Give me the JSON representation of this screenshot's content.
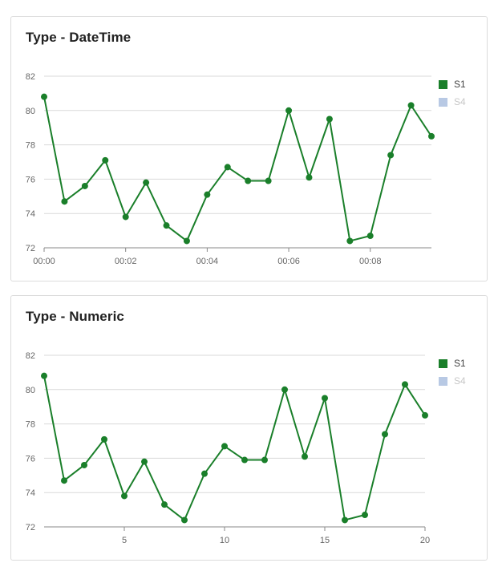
{
  "charts": [
    {
      "title": "Type - DateTime",
      "legend": [
        {
          "name": "S1",
          "color": "#1a7f2a",
          "active": true
        },
        {
          "name": "S4",
          "color": "#b8c9e4",
          "active": false
        }
      ]
    },
    {
      "title": "Type - Numeric",
      "legend": [
        {
          "name": "S1",
          "color": "#1a7f2a",
          "active": true
        },
        {
          "name": "S4",
          "color": "#b8c9e4",
          "active": false
        }
      ]
    }
  ],
  "chart_data": [
    {
      "type": "line",
      "title": "Type - DateTime",
      "xlabel": "",
      "ylabel": "",
      "x": [
        "00:00",
        "00:30",
        "01:00",
        "01:30",
        "02:00",
        "02:30",
        "03:00",
        "03:30",
        "04:00",
        "04:30",
        "05:00",
        "05:30",
        "06:00",
        "06:30",
        "07:00",
        "07:30",
        "08:00",
        "08:30",
        "09:00",
        "09:30"
      ],
      "x_ticks": [
        "00:00",
        "00:02",
        "00:04",
        "00:06",
        "00:08"
      ],
      "ylim": [
        72,
        82
      ],
      "y_ticks": [
        72,
        74,
        76,
        78,
        80,
        82
      ],
      "grid": true,
      "legend_position": "right",
      "series": [
        {
          "name": "S1",
          "color": "#1a7f2a",
          "values": [
            80.8,
            74.7,
            75.6,
            77.1,
            73.8,
            75.8,
            73.3,
            72.4,
            75.1,
            76.7,
            75.9,
            75.9,
            80.0,
            76.1,
            79.5,
            72.4,
            72.7,
            77.4,
            80.3,
            78.5
          ]
        }
      ]
    },
    {
      "type": "line",
      "title": "Type - Numeric",
      "xlabel": "",
      "ylabel": "",
      "x": [
        1,
        2,
        3,
        4,
        5,
        6,
        7,
        8,
        9,
        10,
        11,
        12,
        13,
        14,
        15,
        16,
        17,
        18,
        19,
        20
      ],
      "x_ticks": [
        5,
        10,
        15,
        20
      ],
      "ylim": [
        72,
        82
      ],
      "y_ticks": [
        72,
        74,
        76,
        78,
        80,
        82
      ],
      "grid": true,
      "legend_position": "right",
      "series": [
        {
          "name": "S1",
          "color": "#1a7f2a",
          "values": [
            80.8,
            74.7,
            75.6,
            77.1,
            73.8,
            75.8,
            73.3,
            72.4,
            75.1,
            76.7,
            75.9,
            75.9,
            80.0,
            76.1,
            79.5,
            72.4,
            72.7,
            77.4,
            80.3,
            78.5
          ]
        }
      ]
    }
  ]
}
